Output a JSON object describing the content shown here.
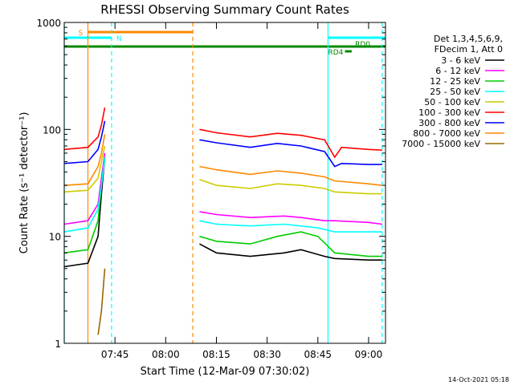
{
  "chart_data": {
    "type": "line",
    "title": "RHESSI Observing Summary Count Rates",
    "xlabel": "Start Time (12-Mar-09 07:30:02)",
    "ylabel": "Count Rate (s⁻¹ detector⁻¹)",
    "yscale": "log",
    "ylim": [
      1,
      1000
    ],
    "xlim": [
      "07:30",
      "09:05"
    ],
    "x_ticks": [
      "07:45",
      "08:00",
      "08:15",
      "08:30",
      "08:45",
      "09:00"
    ],
    "y_ticks": [
      "1",
      "10",
      "100",
      "1000"
    ],
    "legend": {
      "placement": "right",
      "header": [
        "Det 1,3,4,5,6,9,",
        "FDecim 1, Att 0"
      ]
    },
    "series": [
      {
        "name": "3 - 6 keV",
        "color": "#000000",
        "segments": [
          [
            [
              "07:30",
              5.2
            ],
            [
              "07:37",
              5.6
            ],
            [
              "07:40",
              10
            ],
            [
              "07:41",
              25
            ],
            [
              "07:42",
              55
            ]
          ],
          [
            [
              "08:10",
              8.5
            ],
            [
              "08:15",
              7
            ],
            [
              "08:25",
              6.5
            ],
            [
              "08:35",
              7
            ],
            [
              "08:40",
              7.5
            ],
            [
              "08:47",
              6.5
            ],
            [
              "08:50",
              6.2
            ],
            [
              "09:00",
              6
            ],
            [
              "09:04",
              6
            ]
          ]
        ]
      },
      {
        "name": "6 - 12 keV",
        "color": "#ff00ff",
        "segments": [
          [
            [
              "07:30",
              13
            ],
            [
              "07:37",
              14
            ],
            [
              "07:40",
              20
            ],
            [
              "07:41",
              35
            ],
            [
              "07:42",
              60
            ]
          ],
          [
            [
              "08:10",
              17
            ],
            [
              "08:15",
              16
            ],
            [
              "08:25",
              15
            ],
            [
              "08:35",
              15.5
            ],
            [
              "08:40",
              15
            ],
            [
              "08:47",
              14
            ],
            [
              "08:50",
              14
            ],
            [
              "09:00",
              13.5
            ],
            [
              "09:04",
              13
            ]
          ]
        ]
      },
      {
        "name": "12 - 25 keV",
        "color": "#00cc00",
        "segments": [
          [
            [
              "07:30",
              7
            ],
            [
              "07:37",
              7.5
            ],
            [
              "07:40",
              14
            ],
            [
              "07:41",
              30
            ],
            [
              "07:42",
              55
            ]
          ],
          [
            [
              "08:10",
              10
            ],
            [
              "08:15",
              9
            ],
            [
              "08:25",
              8.5
            ],
            [
              "08:33",
              10
            ],
            [
              "08:40",
              11
            ],
            [
              "08:45",
              10
            ],
            [
              "08:50",
              7
            ],
            [
              "09:00",
              6.5
            ],
            [
              "09:04",
              6.5
            ]
          ]
        ]
      },
      {
        "name": "25 - 50 keV",
        "color": "#00ffff",
        "segments": [
          [
            [
              "07:30",
              11
            ],
            [
              "07:37",
              12
            ],
            [
              "07:40",
              18
            ],
            [
              "07:41",
              30
            ],
            [
              "07:42",
              55
            ]
          ],
          [
            [
              "08:10",
              14
            ],
            [
              "08:15",
              13
            ],
            [
              "08:25",
              12.5
            ],
            [
              "08:35",
              13
            ],
            [
              "08:45",
              12
            ],
            [
              "08:50",
              11
            ],
            [
              "09:00",
              11
            ],
            [
              "09:04",
              11
            ]
          ]
        ]
      },
      {
        "name": "50 - 100 keV",
        "color": "#cccc00",
        "segments": [
          [
            [
              "07:30",
              26
            ],
            [
              "07:37",
              27
            ],
            [
              "07:40",
              35
            ],
            [
              "07:41",
              50
            ],
            [
              "07:42",
              70
            ]
          ],
          [
            [
              "08:10",
              34
            ],
            [
              "08:15",
              30
            ],
            [
              "08:25",
              28
            ],
            [
              "08:33",
              31
            ],
            [
              "08:40",
              30
            ],
            [
              "08:47",
              28
            ],
            [
              "08:50",
              26
            ],
            [
              "09:00",
              25
            ],
            [
              "09:04",
              25
            ]
          ]
        ]
      },
      {
        "name": "100 - 300 keV",
        "color": "#ff0000",
        "segments": [
          [
            [
              "07:30",
              65
            ],
            [
              "07:37",
              68
            ],
            [
              "07:40",
              85
            ],
            [
              "07:41",
              110
            ],
            [
              "07:42",
              160
            ]
          ],
          [
            [
              "08:10",
              100
            ],
            [
              "08:15",
              93
            ],
            [
              "08:25",
              85
            ],
            [
              "08:33",
              92
            ],
            [
              "08:40",
              88
            ],
            [
              "08:47",
              80
            ],
            [
              "08:50",
              55
            ],
            [
              "08:52",
              68
            ],
            [
              "09:00",
              65
            ],
            [
              "09:04",
              64
            ]
          ]
        ]
      },
      {
        "name": "300 - 800 keV",
        "color": "#0000ff",
        "segments": [
          [
            [
              "07:30",
              48
            ],
            [
              "07:37",
              50
            ],
            [
              "07:40",
              65
            ],
            [
              "07:41",
              85
            ],
            [
              "07:42",
              120
            ]
          ],
          [
            [
              "08:10",
              80
            ],
            [
              "08:15",
              75
            ],
            [
              "08:25",
              68
            ],
            [
              "08:33",
              74
            ],
            [
              "08:40",
              70
            ],
            [
              "08:47",
              62
            ],
            [
              "08:50",
              45
            ],
            [
              "08:52",
              48
            ],
            [
              "09:00",
              47
            ],
            [
              "09:04",
              47
            ]
          ]
        ]
      },
      {
        "name": "800 - 7000 keV",
        "color": "#ff8800",
        "segments": [
          [
            [
              "07:30",
              30
            ],
            [
              "07:37",
              31
            ],
            [
              "07:40",
              45
            ],
            [
              "07:41",
              60
            ],
            [
              "07:42",
              90
            ]
          ],
          [
            [
              "08:10",
              45
            ],
            [
              "08:15",
              42
            ],
            [
              "08:25",
              38
            ],
            [
              "08:33",
              41
            ],
            [
              "08:40",
              39
            ],
            [
              "08:47",
              36
            ],
            [
              "08:50",
              33
            ],
            [
              "09:00",
              31
            ],
            [
              "09:04",
              30
            ]
          ]
        ]
      },
      {
        "name": "7000 - 15000 keV",
        "color": "#996600",
        "segments": [
          [
            [
              "07:40",
              1.2
            ],
            [
              "07:41",
              2
            ],
            [
              "07:42",
              5
            ]
          ]
        ]
      }
    ],
    "annotations": [
      {
        "label": "S",
        "color": "#ff8800"
      },
      {
        "label": "N",
        "color": "#00ffff"
      },
      {
        "label": "RD0",
        "color": "#008800"
      },
      {
        "label": "RD4",
        "color": "#008800"
      }
    ],
    "intervals": [
      {
        "label": "S",
        "color": "#ff8800",
        "from": "07:37",
        "to": "08:08"
      },
      {
        "label": "N",
        "color": "#00ffff",
        "from": "07:30",
        "to": "07:44"
      },
      {
        "label": "N",
        "color": "#00ffff",
        "from": "08:48",
        "to": "09:05"
      },
      {
        "label": "RD0",
        "color": "#008800",
        "from": "07:30",
        "to": "09:05"
      },
      {
        "label": "RD4",
        "color": "#008800",
        "from": "08:53",
        "to": "08:55"
      }
    ],
    "vlines": [
      {
        "color": "#00ffff",
        "time": "07:30",
        "style": "solid"
      },
      {
        "color": "#ff8800",
        "time": "07:37",
        "style": "solid"
      },
      {
        "color": "#00ffff",
        "time": "07:44",
        "style": "dashed"
      },
      {
        "color": "#ff8800",
        "time": "08:08",
        "style": "dashed"
      },
      {
        "color": "#00ffff",
        "time": "08:48",
        "style": "solid"
      },
      {
        "color": "#00ffff",
        "time": "09:04",
        "style": "dashed"
      }
    ]
  },
  "footer": {
    "timestamp": "14-Oct-2021 05:18"
  }
}
